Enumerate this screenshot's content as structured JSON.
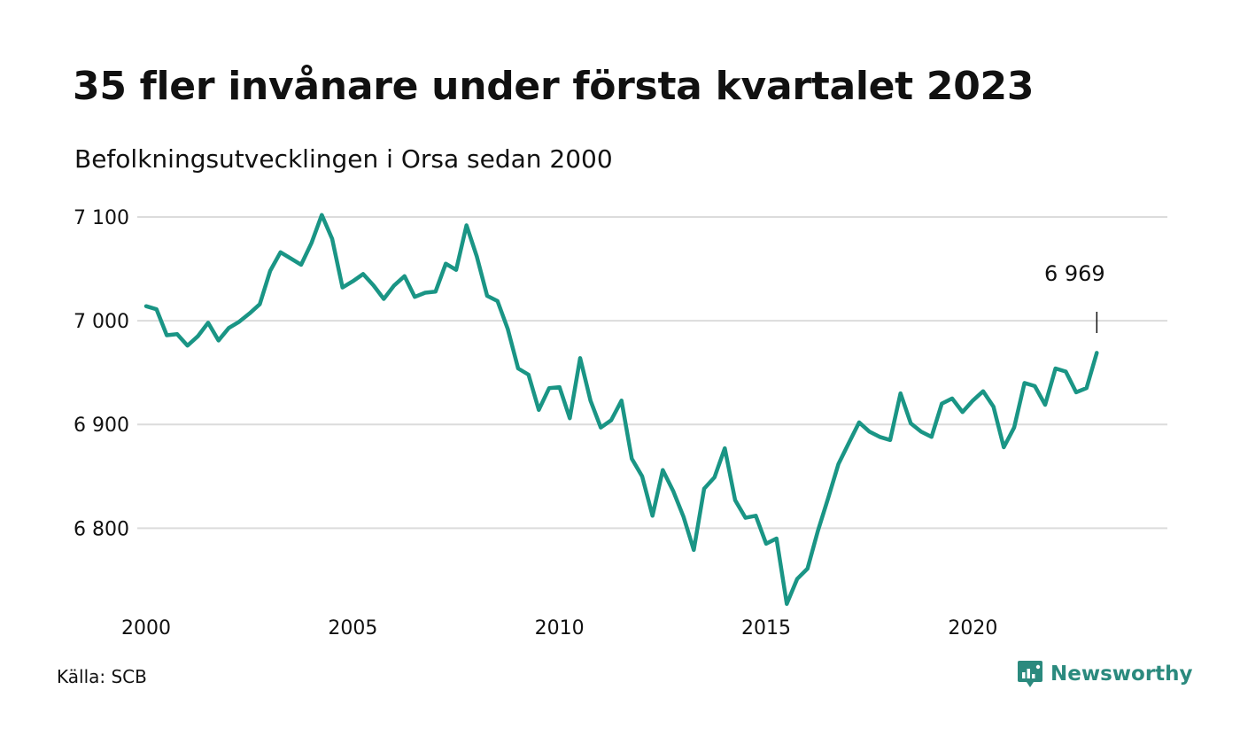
{
  "title": "35 fler invånare under första kvartalet 2023",
  "subtitle": "Befolkningsutvecklingen i Orsa sedan 2000",
  "source": "Källa: SCB",
  "brand": {
    "name": "Newsworthy",
    "icon": "newsworthy-logo-icon",
    "color": "#2b8a7e"
  },
  "chart_data": {
    "type": "line",
    "line_color": "#1a9585",
    "grid": true,
    "ylim": [
      6720,
      7100
    ],
    "y_ticks": [
      6800,
      6900,
      7000,
      7100
    ],
    "y_tick_labels": [
      "6 800",
      "6 900",
      "7 000",
      "7 100"
    ],
    "xlim": [
      2000,
      2024
    ],
    "x_ticks": [
      2000,
      2005,
      2010,
      2015,
      2020
    ],
    "x_tick_labels": [
      "2000",
      "2005",
      "2010",
      "2015",
      "2020"
    ],
    "annotation": {
      "text": "6 969",
      "value": 6969
    },
    "series": [
      {
        "x": [
          2000.0,
          2000.25,
          2000.5,
          2000.75,
          2001.0,
          2001.25,
          2001.5,
          2001.75,
          2002.0,
          2002.25,
          2002.5,
          2002.75,
          2003.0,
          2003.25,
          2003.5,
          2003.75,
          2004.0,
          2004.25,
          2004.5,
          2004.75,
          2005.0,
          2005.25,
          2005.5,
          2005.75,
          2006.0,
          2006.25,
          2006.5,
          2006.75,
          2007.0,
          2007.25,
          2007.5,
          2007.75,
          2008.0,
          2008.25,
          2008.5,
          2008.75,
          2009.0,
          2009.25,
          2009.5,
          2009.75,
          2010.0,
          2010.25,
          2010.5,
          2010.75,
          2011.0,
          2011.25,
          2011.5,
          2011.75,
          2012.0,
          2012.25,
          2012.5,
          2012.75,
          2013.0,
          2013.25,
          2013.5,
          2013.75,
          2014.0,
          2014.25,
          2014.5,
          2014.75,
          2015.0,
          2015.25,
          2015.5,
          2015.75,
          2016.0,
          2016.25,
          2016.5,
          2016.75,
          2017.0,
          2017.25,
          2017.5,
          2017.75,
          2018.0,
          2018.25,
          2018.5,
          2018.75,
          2019.0,
          2019.25,
          2019.5,
          2019.75,
          2020.0,
          2020.25,
          2020.5,
          2020.75,
          2021.0,
          2021.25,
          2021.5,
          2021.75,
          2022.0,
          2022.25,
          2022.5,
          2022.75,
          2023.0
        ],
        "values": [
          7014,
          7011,
          6986,
          6987,
          6976,
          6985,
          6998,
          6981,
          6993,
          6999,
          7007,
          7016,
          7048,
          7066,
          7060,
          7054,
          7075,
          7102,
          7079,
          7032,
          7038,
          7045,
          7034,
          7021,
          7034,
          7043,
          7023,
          7027,
          7028,
          7055,
          7049,
          7092,
          7062,
          7024,
          7019,
          6992,
          6954,
          6948,
          6914,
          6935,
          6936,
          6906,
          6964,
          6923,
          6897,
          6904,
          6923,
          6867,
          6850,
          6812,
          6856,
          6836,
          6811,
          6779,
          6838,
          6849,
          6877,
          6827,
          6810,
          6812,
          6785,
          6790,
          6727,
          6751,
          6761,
          6797,
          6829,
          6862,
          6882,
          6902,
          6893,
          6888,
          6885,
          6930,
          6901,
          6893,
          6888,
          6920,
          6925,
          6912,
          6923,
          6932,
          6917,
          6878,
          6897,
          6940,
          6937,
          6919,
          6954,
          6951,
          6931,
          6935,
          6969
        ]
      }
    ]
  }
}
